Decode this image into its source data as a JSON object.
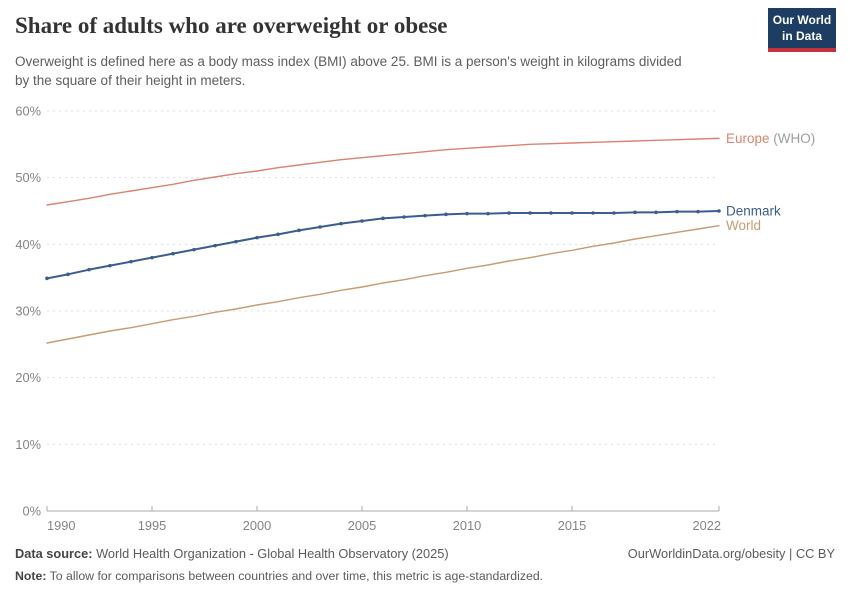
{
  "header": {
    "title": "Share of adults who are overweight or obese",
    "subtitle_line1": "Overweight is defined here as a body mass index (BMI) above 25. BMI is a person's weight in kilograms divided",
    "subtitle_line2": "by the square of their height in meters.",
    "logo": {
      "line1": "Our World",
      "line2": "in Data",
      "bg": "#1d3d63",
      "accent": "#c4323f"
    }
  },
  "chart_data": {
    "type": "line",
    "title": "Share of adults who are overweight or obese",
    "xlabel": "",
    "ylabel": "",
    "xlim": [
      1990,
      2022
    ],
    "ylim": [
      0,
      60
    ],
    "grid": "dashed-horizontal",
    "legend_position": "right-edge-labels",
    "x_ticks": [
      1990,
      1995,
      2000,
      2005,
      2010,
      2015,
      2022
    ],
    "y_ticks": [
      0,
      10,
      20,
      30,
      40,
      50,
      60
    ],
    "y_tick_suffix": "%",
    "x": [
      1990,
      1991,
      1992,
      1993,
      1994,
      1995,
      1996,
      1997,
      1998,
      1999,
      2000,
      2001,
      2002,
      2003,
      2004,
      2005,
      2006,
      2007,
      2008,
      2009,
      2010,
      2011,
      2012,
      2013,
      2014,
      2015,
      2016,
      2017,
      2018,
      2019,
      2020,
      2021,
      2022
    ],
    "series": [
      {
        "name": "Europe",
        "suffix": " (WHO)",
        "suffix_color": "#9e9e9e",
        "color": "#d98373",
        "markers": false,
        "values": [
          45.9,
          46.4,
          46.9,
          47.5,
          48.0,
          48.5,
          49.0,
          49.6,
          50.1,
          50.6,
          51.0,
          51.5,
          51.9,
          52.3,
          52.7,
          53.0,
          53.3,
          53.6,
          53.9,
          54.2,
          54.4,
          54.6,
          54.8,
          55.0,
          55.1,
          55.2,
          55.3,
          55.4,
          55.5,
          55.6,
          55.7,
          55.8,
          55.9
        ]
      },
      {
        "name": "Denmark",
        "suffix": "",
        "suffix_color": "#9e9e9e",
        "color": "#3d5c8f",
        "markers": true,
        "values": [
          34.9,
          35.5,
          36.2,
          36.8,
          37.4,
          38.0,
          38.6,
          39.2,
          39.8,
          40.4,
          41.0,
          41.5,
          42.1,
          42.6,
          43.1,
          43.5,
          43.9,
          44.1,
          44.3,
          44.5,
          44.6,
          44.6,
          44.7,
          44.7,
          44.7,
          44.7,
          44.7,
          44.7,
          44.8,
          44.8,
          44.9,
          44.9,
          45.0
        ]
      },
      {
        "name": "World",
        "suffix": "",
        "suffix_color": "#9e9e9e",
        "color": "#c69c73",
        "markers": false,
        "values": [
          25.2,
          25.8,
          26.4,
          27.0,
          27.5,
          28.1,
          28.7,
          29.2,
          29.8,
          30.3,
          30.9,
          31.4,
          32.0,
          32.5,
          33.1,
          33.6,
          34.2,
          34.7,
          35.3,
          35.8,
          36.4,
          36.9,
          37.5,
          38.0,
          38.6,
          39.1,
          39.7,
          40.2,
          40.8,
          41.3,
          41.8,
          42.3,
          42.8
        ]
      }
    ]
  },
  "footer": {
    "source_label": "Data source:",
    "source_text": " World Health Organization - Global Health Observatory (2025)",
    "rights": "OurWorldinData.org/obesity | CC BY",
    "note_label": "Note:",
    "note_text": " To allow for comparisons between countries and over time, this metric is age-standardized."
  }
}
